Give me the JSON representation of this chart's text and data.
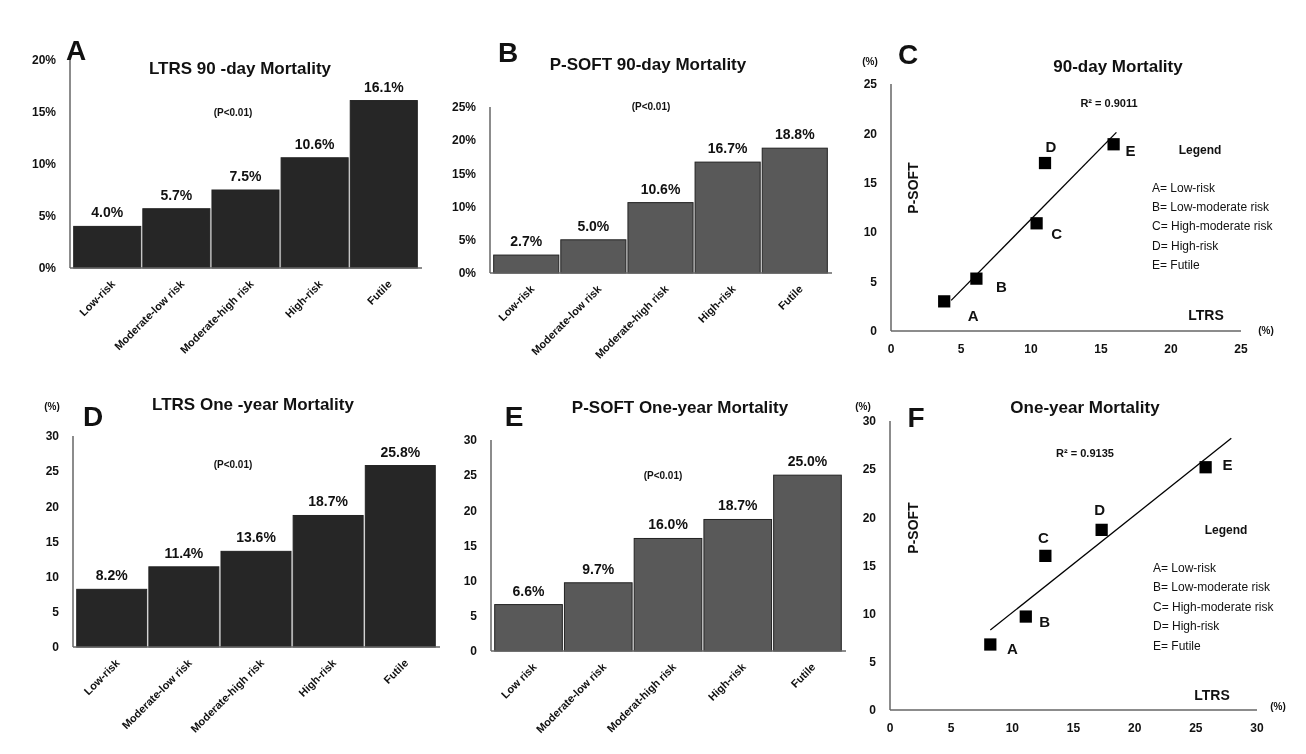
{
  "chart_data": [
    {
      "type": "bar",
      "title": "LTRS 90 -day Mortality",
      "categories": [
        "Low-risk",
        "Moderate-low risk",
        "Moderate-high risk",
        "High-risk",
        "Futile"
      ],
      "values": [
        4.0,
        5.7,
        7.5,
        10.6,
        16.1
      ],
      "value_labels": [
        "4.0%",
        "5.7%",
        "7.5%",
        "10.6%",
        "16.1%"
      ],
      "color": "#262626",
      "ylim": [
        0,
        20
      ],
      "yticks": [
        {
          "value": 0,
          "label": "0%"
        },
        {
          "value": 5,
          "label": "5%"
        },
        {
          "value": 10,
          "label": "10%"
        },
        {
          "value": 15,
          "label": "15%"
        },
        {
          "value": 20,
          "label": "20%"
        }
      ],
      "grid": false,
      "annotations": [
        "A",
        "(P<0.01)"
      ]
    },
    {
      "type": "bar",
      "title": "P-SOFT 90-day Mortality",
      "categories": [
        "Low-risk",
        "Moderate-low risk",
        "Moderate-high risk",
        "High-risk",
        "Futile"
      ],
      "values": [
        2.7,
        5.0,
        10.6,
        16.7,
        18.8
      ],
      "value_labels": [
        "2.7%",
        "5.0%",
        "10.6%",
        "16.7%",
        "18.8%"
      ],
      "color": "#595959",
      "ylim": [
        0,
        25
      ],
      "yticks": [
        {
          "value": 0,
          "label": "0%"
        },
        {
          "value": 5,
          "label": "5%"
        },
        {
          "value": 10,
          "label": "10%"
        },
        {
          "value": 15,
          "label": "15%"
        },
        {
          "value": 20,
          "label": "20%"
        },
        {
          "value": 25,
          "label": "25%"
        }
      ],
      "grid": false,
      "annotations": [
        "B",
        "(P<0.01)"
      ]
    },
    {
      "type": "scatter",
      "title": "90-day Mortality",
      "xlabel": "LTRS",
      "ylabel": "P-SOFT",
      "grid": false,
      "xlim": [
        0,
        25
      ],
      "xticks": [
        0,
        5,
        10,
        15,
        20,
        25
      ],
      "ylim": [
        0,
        25
      ],
      "yticks": [
        0,
        5,
        10,
        15,
        20,
        25
      ],
      "series": [
        {
          "type": "scatter",
          "marker": "square",
          "color": "#000000",
          "x": [
            3.8,
            6.1,
            10.4,
            11.0,
            15.9
          ],
          "values": [
            3.0,
            5.3,
            10.9,
            17.0,
            18.9
          ]
        },
        {
          "type": "line",
          "color": "#000000",
          "x": [
            4.3,
            16.1
          ],
          "values": [
            3.1,
            20.1
          ]
        }
      ],
      "annotations": [
        "C",
        "R² = 0.9011",
        "(%)",
        "(%)",
        "Legend",
        "A= Low-risk",
        "B= Low-moderate risk",
        "C= High-moderate risk",
        "D= High-risk",
        "E= Futile",
        {
          "text": "A",
          "x": 3.8,
          "y": 3.0
        },
        {
          "text": "B",
          "x": 6.1,
          "y": 5.3
        },
        {
          "text": "C",
          "x": 10.4,
          "y": 10.9
        },
        {
          "text": "D",
          "x": 11.0,
          "y": 17.0
        },
        {
          "text": "E",
          "x": 15.9,
          "y": 18.9
        }
      ]
    },
    {
      "type": "bar",
      "title": "LTRS One -year Mortality",
      "categories": [
        "Low-risk",
        "Moderate-low risk",
        "Moderate-high risk",
        "High-risk",
        "Futile"
      ],
      "values": [
        8.2,
        11.4,
        13.6,
        18.7,
        25.8
      ],
      "value_labels": [
        "8.2%",
        "11.4%",
        "13.6%",
        "18.7%",
        "25.8%"
      ],
      "color": "#262626",
      "ylim": [
        0,
        30
      ],
      "yticks": [
        0,
        5,
        10,
        15,
        20,
        25,
        30
      ],
      "grid": false,
      "annotations": [
        "D",
        "(P<0.01)",
        "(%)"
      ]
    },
    {
      "type": "bar",
      "title": "P-SOFT One-year Mortality",
      "categories": [
        "Low risk",
        "Moderate-low risk",
        "Moderat-high risk",
        "High-risk",
        "Futile"
      ],
      "values": [
        6.6,
        9.7,
        16.0,
        18.7,
        25.0
      ],
      "value_labels": [
        "6.6%",
        "9.7%",
        "16.0%",
        "18.7%",
        "25.0%"
      ],
      "color": "#595959",
      "ylim": [
        0,
        30
      ],
      "yticks": [
        0,
        5,
        10,
        15,
        20,
        25,
        30
      ],
      "grid": false,
      "annotations": [
        "E",
        "(P<0.01)"
      ]
    },
    {
      "type": "scatter",
      "title": "One-year Mortality",
      "xlabel": "LTRS",
      "ylabel": "P-SOFT",
      "grid": false,
      "xlim": [
        0,
        30
      ],
      "xticks": [
        0,
        5,
        10,
        15,
        20,
        25,
        30
      ],
      "ylim": [
        0,
        30
      ],
      "yticks": [
        0,
        5,
        10,
        15,
        20,
        25,
        30
      ],
      "series": [
        {
          "type": "scatter",
          "marker": "square",
          "color": "#000000",
          "x": [
            8.2,
            11.1,
            12.7,
            17.3,
            25.8
          ],
          "values": [
            6.8,
            9.7,
            16.0,
            18.7,
            25.2
          ]
        },
        {
          "type": "line",
          "color": "#000000",
          "x": [
            8.2,
            27.9
          ],
          "values": [
            8.3,
            28.2
          ]
        }
      ],
      "annotations": [
        "F",
        "R² = 0.9135",
        "(%)",
        "(%)",
        "Legend",
        "A= Low-risk",
        "B= Low-moderate risk",
        "C= High-moderate risk",
        "D= High-risk",
        "E= Futile",
        {
          "text": "A",
          "x": 8.2,
          "y": 6.8
        },
        {
          "text": "B",
          "x": 11.1,
          "y": 9.7
        },
        {
          "text": "C",
          "x": 12.7,
          "y": 16.0
        },
        {
          "text": "D",
          "x": 17.3,
          "y": 18.7
        },
        {
          "text": "E",
          "x": 25.8,
          "y": 25.2
        }
      ]
    }
  ]
}
